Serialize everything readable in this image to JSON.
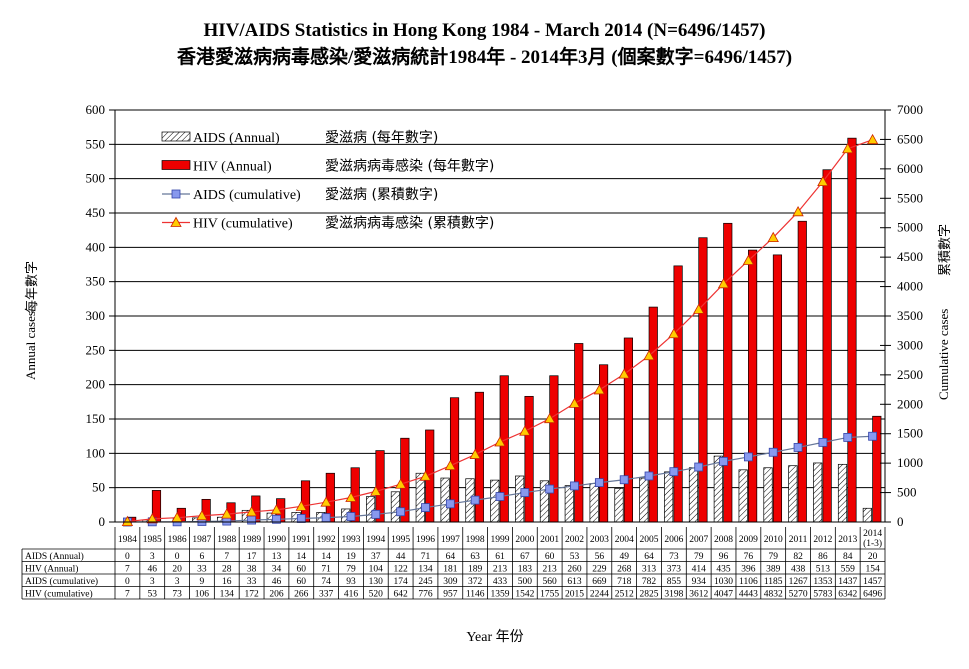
{
  "chart_data": {
    "type": "bar",
    "title": "HIV/AIDS  Statistics in Hong Kong 1984 - March 2014 (N=6496/1457)",
    "subtitle": "香港愛滋病病毒感染/愛滋病統計1984年 - 2014年3月 (個案數字=6496/1457)",
    "xlabel": "Year 年份",
    "ylabel_left": {
      "en": "Annual cases",
      "zh": "每年數字"
    },
    "ylabel_right": {
      "en": "Cumulative cases",
      "zh": "累積數字"
    },
    "ylim_left": [
      0,
      600
    ],
    "ylim_right": [
      0,
      7000
    ],
    "yticks_left": [
      "0",
      "50",
      "100",
      "150",
      "200",
      "250",
      "300",
      "350",
      "400",
      "450",
      "500",
      "550",
      "600"
    ],
    "yticks_right": [
      "0",
      "500",
      "1000",
      "1500",
      "2000",
      "2500",
      "3000",
      "3500",
      "4000",
      "4500",
      "5000",
      "5500",
      "6000",
      "6500",
      "7000"
    ],
    "grid": true,
    "legend_position": "top-left",
    "categories": [
      "1984",
      "1985",
      "1986",
      "1987",
      "1988",
      "1989",
      "1990",
      "1991",
      "1992",
      "1993",
      "1994",
      "1995",
      "1996",
      "1997",
      "1998",
      "1999",
      "2000",
      "2001",
      "2002",
      "2003",
      "2004",
      "2005",
      "2006",
      "2007",
      "2008",
      "2009",
      "2010",
      "2011",
      "2012",
      "2013",
      "2014 (1-3)"
    ],
    "series": [
      {
        "name": "AIDS (Annual)",
        "name_zh": "愛滋病 (每年數字)",
        "kind": "bar",
        "axis": "left",
        "color": "#ffffff",
        "pattern": "hatched",
        "values": [
          0,
          3,
          0,
          6,
          7,
          17,
          13,
          14,
          14,
          19,
          37,
          44,
          71,
          64,
          63,
          61,
          67,
          60,
          53,
          56,
          49,
          64,
          73,
          79,
          96,
          76,
          79,
          82,
          86,
          84,
          20
        ]
      },
      {
        "name": "HIV (Annual)",
        "name_zh": "愛滋病病毒感染 (每年數字)",
        "kind": "bar",
        "axis": "left",
        "color": "#ee0000",
        "values": [
          7,
          46,
          20,
          33,
          28,
          38,
          34,
          60,
          71,
          79,
          104,
          122,
          134,
          181,
          189,
          213,
          183,
          213,
          260,
          229,
          268,
          313,
          373,
          414,
          435,
          396,
          389,
          438,
          513,
          559,
          154
        ]
      },
      {
        "name": "AIDS (cumulative)",
        "name_zh": "愛滋病 (累積數字)",
        "kind": "line",
        "axis": "right",
        "color": "#8899ee",
        "line_color": "#667799",
        "marker": "square",
        "values": [
          0,
          3,
          3,
          9,
          16,
          33,
          46,
          60,
          74,
          93,
          130,
          174,
          245,
          309,
          372,
          433,
          500,
          560,
          613,
          669,
          718,
          782,
          855,
          934,
          1030,
          1106,
          1185,
          1267,
          1353,
          1437,
          1457
        ]
      },
      {
        "name": "HIV (cumulative)",
        "name_zh": "愛滋病病毒感染 (累積數字)",
        "kind": "line",
        "axis": "right",
        "color": "#ffcc00",
        "line_color": "#ee3333",
        "marker": "triangle",
        "values": [
          7,
          53,
          73,
          106,
          134,
          172,
          206,
          266,
          337,
          416,
          520,
          642,
          776,
          957,
          1146,
          1359,
          1542,
          1755,
          2015,
          2244,
          2512,
          2825,
          3198,
          3612,
          4047,
          4443,
          4832,
          5270,
          5783,
          6342,
          6496
        ]
      }
    ]
  }
}
